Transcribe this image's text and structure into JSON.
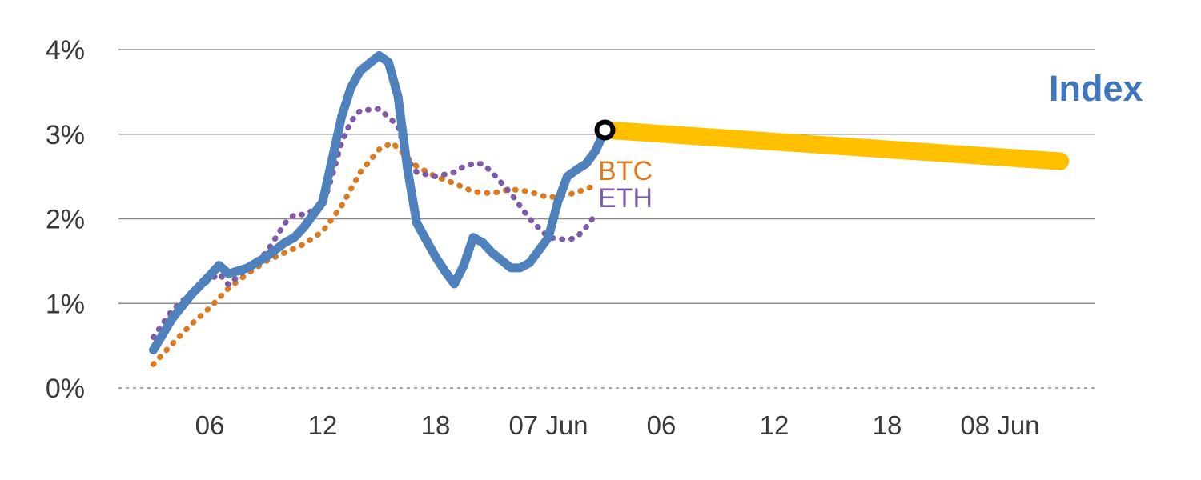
{
  "chart_data": {
    "type": "line",
    "title": "Index",
    "xlabel": "",
    "ylabel": "",
    "ylim": [
      0,
      4
    ],
    "grid": "horizontal",
    "x_unit": "hours since 06 Jun 00:00",
    "yticks": [
      {
        "value": 0,
        "label": "0%"
      },
      {
        "value": 1,
        "label": "1%"
      },
      {
        "value": 2,
        "label": "2%"
      },
      {
        "value": 3,
        "label": "3%"
      },
      {
        "value": 4,
        "label": "4%"
      }
    ],
    "xticks": [
      {
        "hour": 6,
        "label": "06"
      },
      {
        "hour": 12,
        "label": "12"
      },
      {
        "hour": 18,
        "label": "18"
      },
      {
        "hour": 24,
        "label": "07 Jun"
      },
      {
        "hour": 30,
        "label": "06"
      },
      {
        "hour": 36,
        "label": "12"
      },
      {
        "hour": 42,
        "label": "18"
      },
      {
        "hour": 48,
        "label": "08 Jun"
      }
    ],
    "labels": {
      "index": "Index",
      "btc": "BTC",
      "eth": "ETH"
    },
    "colors": {
      "index": "#4f81bd",
      "btc": "#dd7a1f",
      "eth": "#7d5ba6",
      "forecast_band": "#ffc000",
      "marker_stroke": "#000000",
      "marker_fill": "#ffffff",
      "grid": "#8c8c8c",
      "tick_text": "#3a3a3a"
    },
    "series": [
      {
        "name": "Index",
        "style": "solid",
        "color": "#4f81bd",
        "x": [
          3,
          4,
          5,
          6,
          6.5,
          7,
          8,
          9,
          10,
          10.5,
          11,
          12,
          12.5,
          13,
          13.5,
          14,
          15,
          15.5,
          16,
          16.5,
          17,
          18,
          18.5,
          19,
          19.5,
          20,
          20.5,
          21,
          22,
          22.5,
          23,
          24,
          24.5,
          25,
          25.5,
          26,
          26.5,
          27
        ],
        "y": [
          0.45,
          0.82,
          1.1,
          1.33,
          1.45,
          1.35,
          1.42,
          1.55,
          1.72,
          1.78,
          1.9,
          2.2,
          2.7,
          3.2,
          3.55,
          3.75,
          3.93,
          3.85,
          3.45,
          2.6,
          1.95,
          1.55,
          1.38,
          1.23,
          1.45,
          1.78,
          1.72,
          1.6,
          1.42,
          1.42,
          1.48,
          1.78,
          2.2,
          2.5,
          2.58,
          2.65,
          2.8,
          3.05
        ]
      },
      {
        "name": "BTC",
        "style": "dotted",
        "color": "#dd7a1f",
        "x": [
          3,
          4,
          5,
          6,
          7,
          8,
          9,
          10,
          11,
          12,
          13,
          14,
          15,
          15.7,
          16.5,
          17,
          18,
          19,
          20,
          21,
          22,
          23,
          24,
          25,
          26,
          26.5
        ],
        "y": [
          0.28,
          0.52,
          0.75,
          0.95,
          1.18,
          1.35,
          1.5,
          1.6,
          1.7,
          1.85,
          2.15,
          2.55,
          2.82,
          2.9,
          2.72,
          2.62,
          2.5,
          2.42,
          2.32,
          2.3,
          2.35,
          2.32,
          2.25,
          2.28,
          2.35,
          2.4
        ]
      },
      {
        "name": "ETH",
        "style": "dotted",
        "color": "#7d5ba6",
        "x": [
          3,
          4,
          5,
          6,
          6.5,
          7,
          8,
          9,
          10,
          10.5,
          11,
          12,
          12.5,
          13,
          13.5,
          14,
          15,
          16,
          16.5,
          17,
          18,
          19,
          19.5,
          20,
          20.5,
          21,
          22,
          23,
          24,
          25,
          25.5,
          26,
          26.5
        ],
        "y": [
          0.6,
          0.92,
          1.12,
          1.28,
          1.35,
          1.22,
          1.42,
          1.6,
          1.95,
          2.05,
          2.05,
          2.15,
          2.5,
          2.9,
          3.15,
          3.28,
          3.3,
          3.1,
          2.7,
          2.55,
          2.5,
          2.55,
          2.62,
          2.65,
          2.65,
          2.55,
          2.3,
          2.0,
          1.78,
          1.75,
          1.78,
          1.9,
          2.05
        ]
      }
    ],
    "forecast_band": {
      "name": "Index forecast",
      "color": "#ffc000",
      "x_hours": [
        27,
        51.2
      ],
      "center_pct": [
        3.05,
        2.68
      ],
      "width_pct": 0.21
    },
    "marker": {
      "hour": 27,
      "value": 3.05,
      "stroke": "#000000",
      "fill": "#ffffff"
    }
  }
}
